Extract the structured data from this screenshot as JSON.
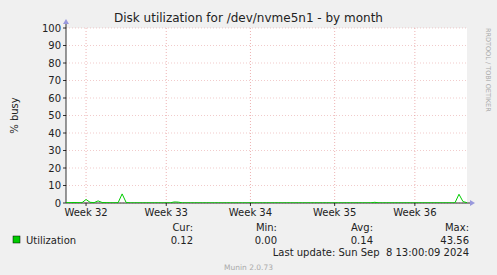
{
  "chart_data": {
    "type": "line",
    "title": "Disk utilization for /dev/nvme5n1 - by month",
    "y_label": "% busy",
    "categories": [
      null,
      null,
      null,
      null,
      null,
      "Week 32",
      null,
      null,
      null,
      null,
      null,
      null,
      null,
      null,
      null,
      null,
      null,
      null,
      null,
      null,
      null,
      null,
      null,
      null,
      null,
      "Week 33",
      null,
      null,
      null,
      null,
      null,
      null,
      null,
      null,
      null,
      null,
      null,
      null,
      null,
      null,
      null,
      null,
      null,
      null,
      null,
      null,
      "Week 34",
      null,
      null,
      null,
      null,
      null,
      null,
      null,
      null,
      null,
      null,
      null,
      null,
      null,
      null,
      null,
      null,
      null,
      null,
      null,
      null,
      "Week 35",
      null,
      null,
      null,
      null,
      null,
      null,
      null,
      null,
      null,
      null,
      null,
      null,
      null,
      null,
      null,
      null,
      null,
      null,
      null,
      "Week 36",
      null,
      null,
      null,
      null,
      null,
      null,
      null,
      null,
      null,
      null,
      null,
      null,
      null
    ],
    "series": [
      {
        "name": "Utilization",
        "color": "#00cc00",
        "values": [
          0.2,
          0.2,
          0.3,
          0.2,
          0.2,
          2.0,
          0.4,
          0.2,
          1.2,
          0.3,
          0.2,
          0.15,
          0.15,
          0.2,
          5.2,
          0.3,
          0.1,
          0.1,
          0.1,
          0.1,
          0.1,
          0.1,
          0.1,
          0.1,
          0.1,
          0.1,
          0.1,
          0.6,
          0.5,
          0.1,
          0.1,
          0.1,
          0.1,
          0.1,
          0.1,
          0.1,
          0.1,
          0.1,
          0.1,
          0.1,
          0.1,
          0.1,
          0.1,
          0.1,
          0.1,
          0.1,
          0.1,
          0.1,
          0.1,
          0.1,
          0.1,
          0.1,
          0.1,
          0.1,
          0.1,
          0.1,
          0.1,
          0.1,
          0.1,
          0.1,
          0.1,
          0.1,
          0.1,
          0.1,
          0.1,
          0.1,
          0.1,
          0.1,
          0.1,
          0.1,
          0.1,
          0.1,
          0.1,
          0.1,
          0.1,
          0.1,
          0.1,
          0.4,
          0.1,
          0.1,
          0.1,
          0.1,
          0.1,
          0.1,
          0.1,
          0.1,
          0.1,
          0.1,
          0.1,
          0.1,
          0.1,
          0.1,
          0.1,
          0.1,
          0.1,
          0.1,
          0.1,
          0.1,
          5.0,
          0.8,
          0.2
        ],
        "stats": [
          {
            "name": "Cur:",
            "value": 0.12
          },
          {
            "name": "Min:",
            "value": 0,
            "label": "0.00"
          },
          {
            "name": "Avg:",
            "value": 0.14
          },
          {
            "name": "Max:",
            "value": 43.56
          }
        ]
      }
    ],
    "ylim": [
      0,
      100
    ],
    "yticks": [
      0,
      10,
      20,
      30,
      40,
      50,
      60,
      70,
      80,
      90,
      100
    ],
    "grid": true,
    "last_update": "Last update: Sun Sep  8 13:00:09 2024",
    "footer": "Munin 2.0.73",
    "watermark": "RRDTOOL / TOBI OETIKER"
  }
}
